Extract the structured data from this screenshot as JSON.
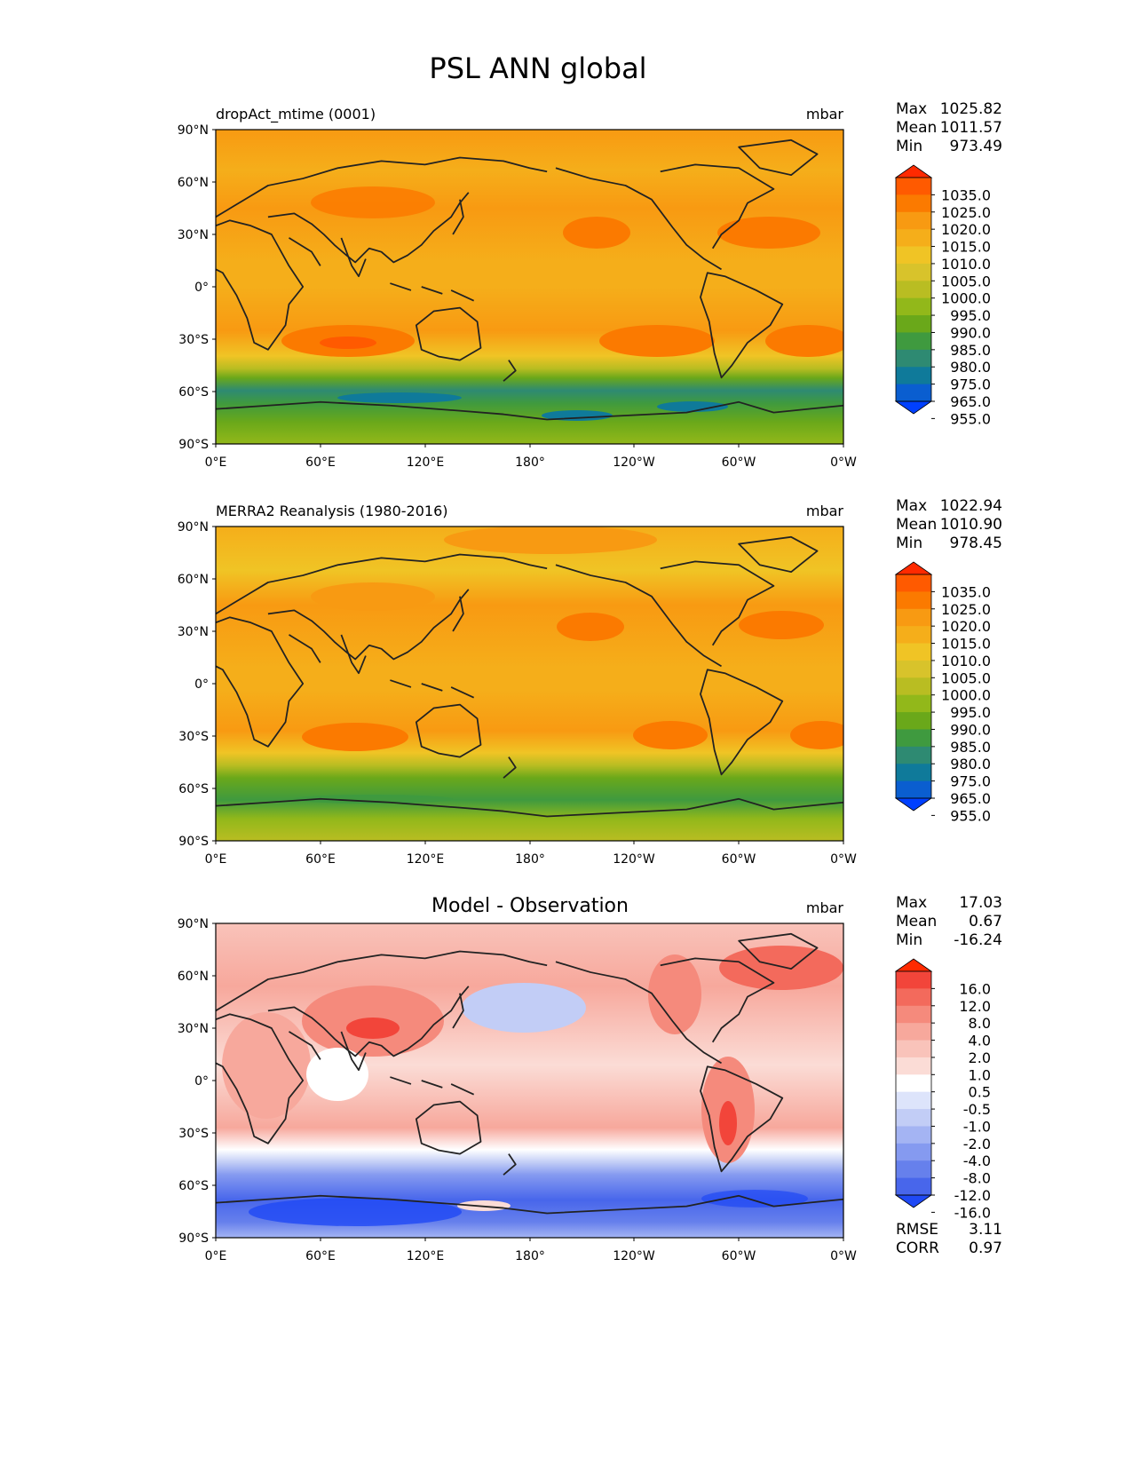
{
  "figure_title": "PSL ANN global",
  "chart_data": [
    {
      "type": "heatmap",
      "title": "dropAct_mtime (0001)",
      "units": "mbar",
      "stats": {
        "max_label": "Max",
        "max": "1025.82",
        "mean_label": "Mean",
        "mean": "1011.57",
        "min_label": "Min",
        "min": "973.49"
      },
      "colorbar_levels": [
        "1035.0",
        "1025.0",
        "1020.0",
        "1015.0",
        "1010.0",
        "1005.0",
        "1000.0",
        "995.0",
        "990.0",
        "985.0",
        "980.0",
        "975.0",
        "965.0",
        "955.0"
      ],
      "colorbar_colors": [
        "#ff2a00",
        "#ff5a00",
        "#fb7a00",
        "#f89a12",
        "#f5ae1a",
        "#f0c425",
        "#d8c32b",
        "#b9bd22",
        "#92b81a",
        "#6aa81a",
        "#3f9a3f",
        "#2e8a72",
        "#0f7a9a",
        "#0a5ed0",
        "#0040ff"
      ],
      "xticks": [
        "0°E",
        "60°E",
        "120°E",
        "180°",
        "120°W",
        "60°W",
        "0°W"
      ],
      "yticks": [
        "90°N",
        "60°N",
        "30°N",
        "0°",
        "30°S",
        "60°S",
        "90°S"
      ]
    },
    {
      "type": "heatmap",
      "title": "MERRA2 Reanalysis (1980-2016)",
      "units": "mbar",
      "stats": {
        "max_label": "Max",
        "max": "1022.94",
        "mean_label": "Mean",
        "mean": "1010.90",
        "min_label": "Min",
        "min": "978.45"
      },
      "colorbar_levels": [
        "1035.0",
        "1025.0",
        "1020.0",
        "1015.0",
        "1010.0",
        "1005.0",
        "1000.0",
        "995.0",
        "990.0",
        "985.0",
        "980.0",
        "975.0",
        "965.0",
        "955.0"
      ],
      "colorbar_colors": [
        "#ff2a00",
        "#ff5a00",
        "#fb7a00",
        "#f89a12",
        "#f5ae1a",
        "#f0c425",
        "#d8c32b",
        "#b9bd22",
        "#92b81a",
        "#6aa81a",
        "#3f9a3f",
        "#2e8a72",
        "#0f7a9a",
        "#0a5ed0",
        "#0040ff"
      ],
      "xticks": [
        "0°E",
        "60°E",
        "120°E",
        "180°",
        "120°W",
        "60°W",
        "0°W"
      ],
      "yticks": [
        "90°N",
        "60°N",
        "30°N",
        "0°",
        "30°S",
        "60°S",
        "90°S"
      ]
    },
    {
      "type": "heatmap",
      "title": "Model - Observation",
      "units": "mbar",
      "stats": {
        "max_label": "Max",
        "max": "17.03",
        "mean_label": "Mean",
        "mean": "0.67",
        "min_label": "Min",
        "min": "-16.24"
      },
      "colorbar_levels": [
        "16.0",
        "12.0",
        "8.0",
        "4.0",
        "2.0",
        "1.0",
        "0.5",
        "-0.5",
        "-1.0",
        "-2.0",
        "-4.0",
        "-8.0",
        "-12.0",
        "-16.0"
      ],
      "colorbar_colors": [
        "#ff2a00",
        "#f2453a",
        "#f36a5c",
        "#f58a7c",
        "#f7a89c",
        "#f9c3ba",
        "#fbdcd6",
        "#ffffff",
        "#dde4fb",
        "#c2cdf6",
        "#a4b4f3",
        "#859af0",
        "#6680ec",
        "#4866eb",
        "#1f49f5"
      ],
      "xticks": [
        "0°E",
        "60°E",
        "120°E",
        "180°",
        "120°W",
        "60°W",
        "0°W"
      ],
      "yticks": [
        "90°N",
        "60°N",
        "30°N",
        "0°",
        "30°S",
        "60°S",
        "90°S"
      ],
      "metrics": {
        "rmse_label": "RMSE",
        "rmse": "3.11",
        "corr_label": "CORR",
        "corr": "0.97"
      }
    }
  ]
}
